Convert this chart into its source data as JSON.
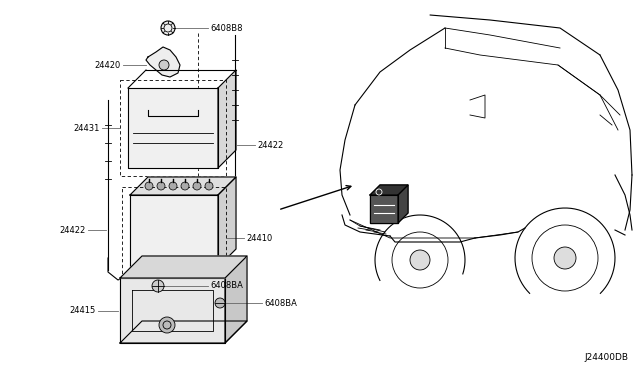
{
  "bg_color": "#ffffff",
  "line_color": "#000000",
  "gray_color": "#666666",
  "fig_width": 6.4,
  "fig_height": 3.72,
  "dpi": 100,
  "diagram_id": "J24400DB",
  "labels": {
    "6408B8": "6408B8",
    "24420": "24420",
    "24431": "24431",
    "24422_r": "24422",
    "24422_l": "24422",
    "24410": "24410",
    "24415": "24415",
    "6408BA_t": "6408BA",
    "6408BA_b": "6408BA"
  }
}
